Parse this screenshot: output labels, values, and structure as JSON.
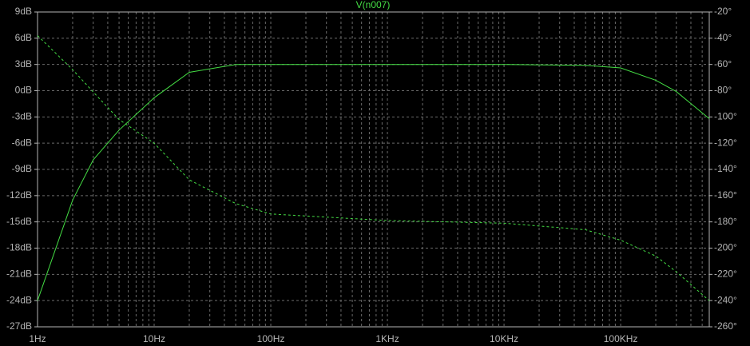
{
  "chart_data": {
    "type": "line",
    "title": "V(n007)",
    "x": [
      1,
      2,
      3,
      5,
      10,
      20,
      50,
      100,
      1000,
      10000,
      50000,
      100000,
      200000,
      300000,
      575000
    ],
    "series": [
      {
        "color": "#44dd44",
        "style": "solid",
        "values": [
          -24,
          -12.5,
          -7.9,
          -4.5,
          -0.8,
          2.1,
          3.0,
          3.0,
          3.0,
          3.0,
          2.9,
          2.6,
          1.2,
          -0.1,
          -3.2
        ]
      },
      {
        "color": "#44dd44",
        "style": "dashed",
        "axis": "y2",
        "values": [
          -38,
          -64,
          -81,
          -102,
          -120,
          -148,
          -166,
          -174,
          -179,
          -181,
          -186,
          -194,
          -206,
          -218,
          -240
        ]
      }
    ],
    "xlog": true,
    "grid": true,
    "xlim": [
      1,
      575000
    ],
    "xticks": [
      {
        "value": 1,
        "label": "1Hz"
      },
      {
        "value": 10,
        "label": "10Hz"
      },
      {
        "value": 100,
        "label": "100Hz"
      },
      {
        "value": 1000,
        "label": "1KHz"
      },
      {
        "value": 10000,
        "label": "10KHz"
      },
      {
        "value": 100000,
        "label": "100KHz"
      }
    ],
    "ylim": [
      -27,
      9
    ],
    "yticks": [
      {
        "value": 9,
        "label": "9dB"
      },
      {
        "value": 6,
        "label": "6dB"
      },
      {
        "value": 3,
        "label": "3dB"
      },
      {
        "value": 0,
        "label": "0dB"
      },
      {
        "value": -3,
        "label": "-3dB"
      },
      {
        "value": -6,
        "label": "-6dB"
      },
      {
        "value": -9,
        "label": "-9dB"
      },
      {
        "value": -12,
        "label": "-12dB"
      },
      {
        "value": -15,
        "label": "-15dB"
      },
      {
        "value": -18,
        "label": "-18dB"
      },
      {
        "value": -21,
        "label": "-21dB"
      },
      {
        "value": -24,
        "label": "-24dB"
      },
      {
        "value": -27,
        "label": "-27dB"
      }
    ],
    "y2lim": [
      -260,
      -20
    ],
    "y2ticks": [
      {
        "value": -20,
        "label": "-20°"
      },
      {
        "value": -40,
        "label": "-40°"
      },
      {
        "value": -60,
        "label": "-60°"
      },
      {
        "value": -80,
        "label": "-80°"
      },
      {
        "value": -100,
        "label": "-100°"
      },
      {
        "value": -120,
        "label": "-120°"
      },
      {
        "value": -140,
        "label": "-140°"
      },
      {
        "value": -160,
        "label": "-160°"
      },
      {
        "value": -180,
        "label": "-180°"
      },
      {
        "value": -200,
        "label": "-200°"
      },
      {
        "value": -220,
        "label": "-220°"
      },
      {
        "value": -240,
        "label": "-240°"
      },
      {
        "value": -260,
        "label": "-260°"
      }
    ]
  }
}
